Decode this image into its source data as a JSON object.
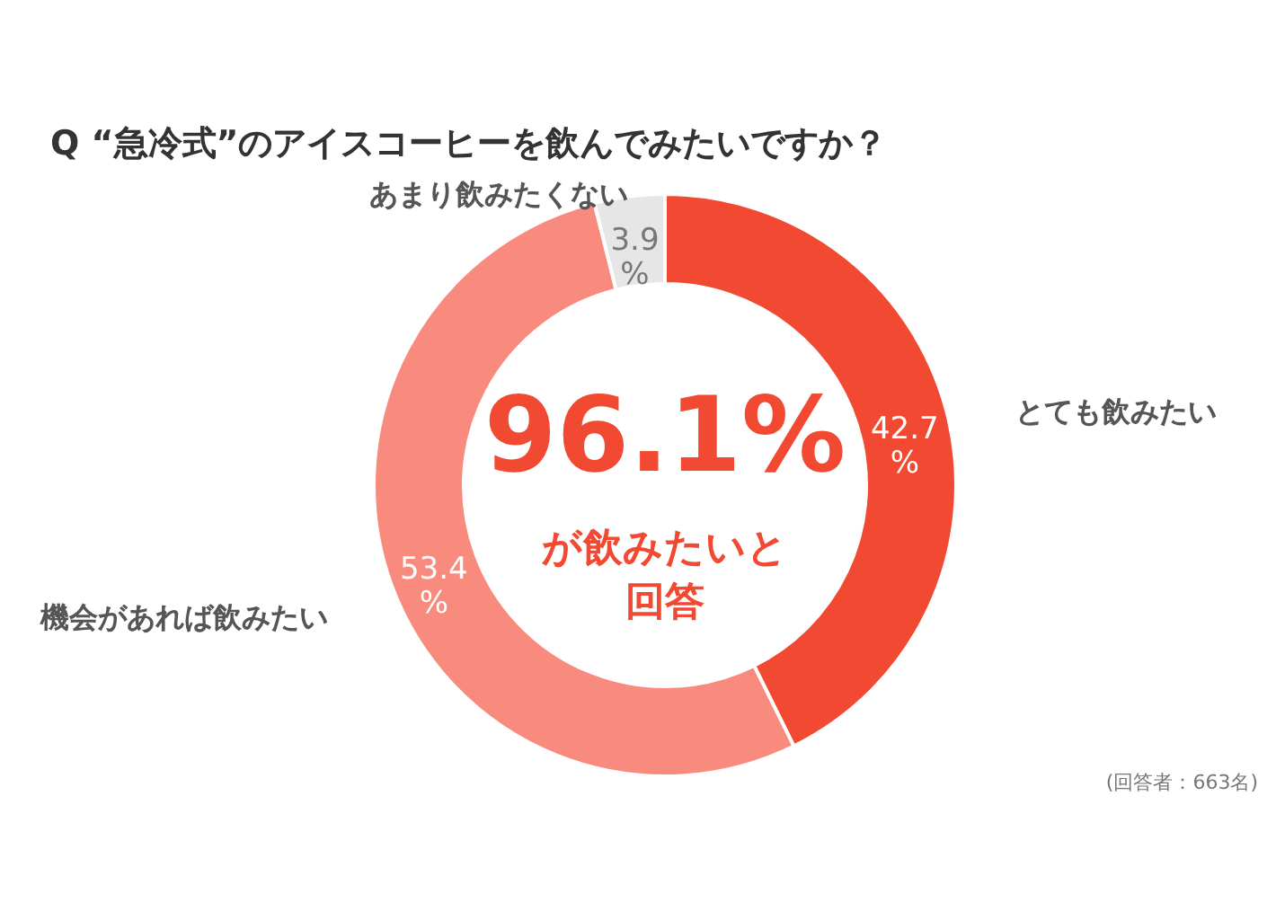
{
  "chart_data": {
    "type": "donut",
    "title": "Q “急冷式”のアイスコーヒーを飲んでみたいですか？",
    "categories": [
      "とても飲みたい",
      "機会があれば飲みたい",
      "あまり飲みたくない"
    ],
    "values": [
      42.7,
      53.4,
      3.9
    ],
    "colors": [
      "#f24a32",
      "#f98a7e",
      "#e6e6e6"
    ],
    "value_labels": [
      "42.7\n%",
      "53.4\n%",
      "3.9\n%"
    ],
    "annotations": [
      "96.1%",
      "が飲みたいと",
      "回答",
      "(回答者：663名)"
    ]
  }
}
